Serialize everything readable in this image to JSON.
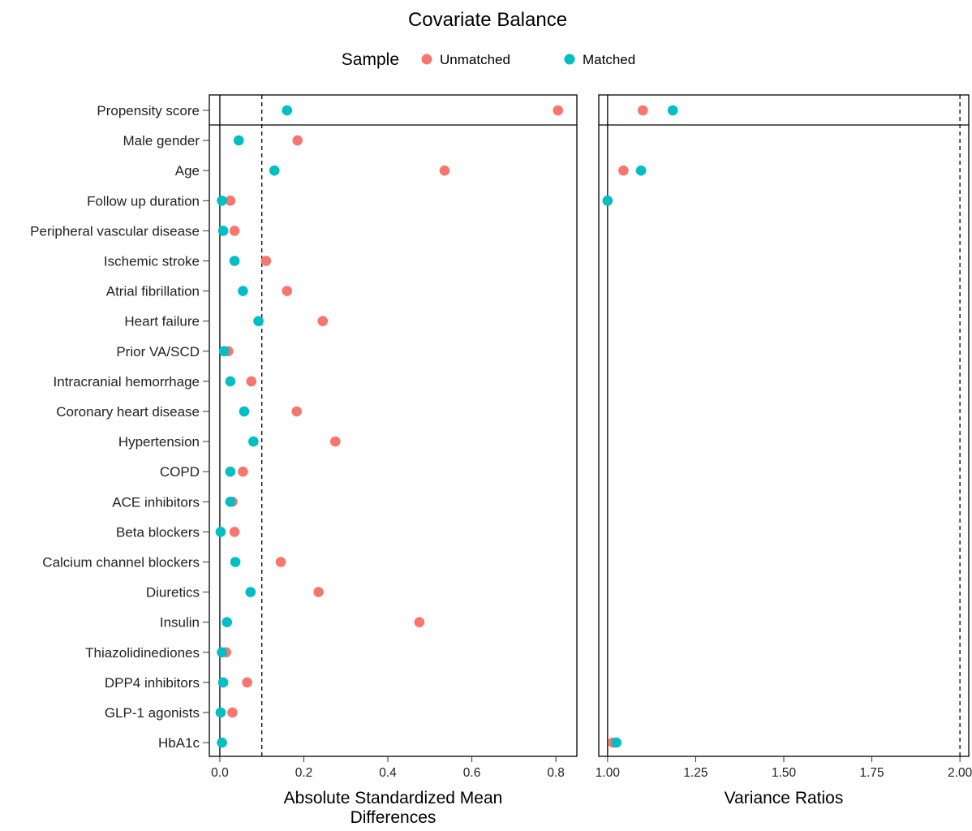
{
  "chart_data": {
    "type": "scatter",
    "title": "Covariate Balance",
    "legend": {
      "title": "Sample",
      "position": "top",
      "items": [
        {
          "label": "Unmatched",
          "color": "#F8766D"
        },
        {
          "label": "Matched",
          "color": "#00BFC4"
        }
      ]
    },
    "covariates": [
      "Propensity score",
      "Male gender",
      "Age",
      "Follow up duration",
      "Peripheral vascular disease",
      "Ischemic stroke",
      "Atrial fibrillation",
      "Heart failure",
      "Prior VA/SCD",
      "Intracranial hemorrhage",
      "Coronary heart disease",
      "Hypertension",
      "COPD",
      "ACE inhibitors",
      "Beta blockers",
      "Calcium channel blockers",
      "Diuretics",
      "Insulin",
      "Thiazolidinediones",
      "DPP4 inhibitors",
      "GLP-1 agonists",
      "HbA1c"
    ],
    "panels": [
      {
        "id": "smd",
        "xlabel": [
          "Absolute Standardized Mean",
          "Differences"
        ],
        "xlim": [
          -0.025,
          0.85
        ],
        "ticks": [
          0.0,
          0.2,
          0.4,
          0.6,
          0.8
        ],
        "tick_labels": [
          "0.0",
          "0.2",
          "0.4",
          "0.6",
          "0.8"
        ],
        "ref_line": 0,
        "threshold": 0.1,
        "series": [
          {
            "name": "Unmatched",
            "color": "#F8766D",
            "values": [
              0.805,
              0.185,
              0.535,
              0.025,
              0.035,
              0.11,
              0.16,
              0.245,
              0.02,
              0.075,
              0.183,
              0.275,
              0.055,
              0.03,
              0.035,
              0.145,
              0.235,
              0.475,
              0.015,
              0.065,
              0.03,
              null
            ]
          },
          {
            "name": "Matched",
            "color": "#00BFC4",
            "values": [
              0.16,
              0.045,
              0.13,
              0.005,
              0.008,
              0.035,
              0.055,
              0.092,
              0.01,
              0.025,
              0.058,
              0.08,
              0.025,
              0.025,
              0.002,
              0.037,
              0.073,
              0.017,
              0.005,
              0.008,
              0.002,
              0.005
            ]
          }
        ]
      },
      {
        "id": "vr",
        "xlabel": [
          "Variance Ratios"
        ],
        "xlim": [
          0.975,
          2.025
        ],
        "ticks": [
          1.0,
          1.25,
          1.5,
          1.75,
          2.0
        ],
        "tick_labels": [
          "1.00",
          "1.25",
          "1.50",
          "1.75",
          "2.00"
        ],
        "ref_line": 1,
        "threshold": 2,
        "series": [
          {
            "name": "Unmatched",
            "color": "#F8766D",
            "values": [
              1.1,
              null,
              1.045,
              1.0,
              null,
              null,
              null,
              null,
              null,
              null,
              null,
              null,
              null,
              null,
              null,
              null,
              null,
              null,
              null,
              null,
              null,
              1.015
            ]
          },
          {
            "name": "Matched",
            "color": "#00BFC4",
            "values": [
              1.185,
              null,
              1.095,
              1.0,
              null,
              null,
              null,
              null,
              null,
              null,
              null,
              null,
              null,
              null,
              null,
              null,
              null,
              null,
              null,
              null,
              null,
              1.025
            ]
          }
        ]
      }
    ]
  }
}
